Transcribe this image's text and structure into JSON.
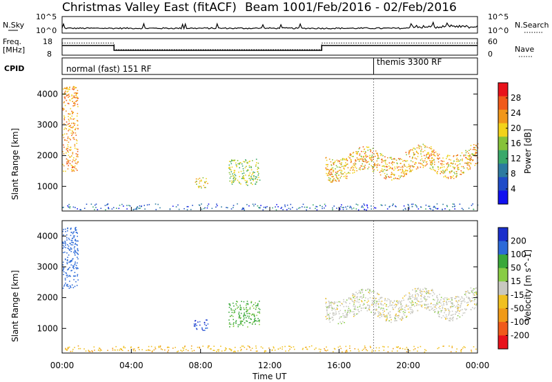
{
  "header": {
    "title": "Christmas Valley East (fitACF)",
    "beam": "Beam 10",
    "date_range": "01/Feb/2016 - 02/Feb/2016"
  },
  "noise_panel": {
    "left_label": "N.Sky",
    "right_label": "N.Search",
    "left_ticks": [
      "10^5",
      "10^0"
    ],
    "right_ticks": [
      "10^5",
      "10^0"
    ]
  },
  "freq_panel": {
    "left_label_1": "Freq.",
    "left_label_2": "[MHz]",
    "right_label": "Nave",
    "left_ticks": [
      "18",
      "8"
    ],
    "right_ticks": [
      "60",
      "0"
    ]
  },
  "cpid_panel": {
    "label": "CPID",
    "mode_1": "normal (fast) 151 RF",
    "mode_2": "themis 3300 RF"
  },
  "power_panel": {
    "ylabel": "Slant Range [km]",
    "yticks": [
      "4000",
      "3000",
      "2000",
      "1000"
    ],
    "colorbar_label": "Power [dB]",
    "colorbar_ticks": [
      "28",
      "24",
      "20",
      "16",
      "12",
      "8",
      "4"
    ],
    "colorbar_colors": [
      "#e8121b",
      "#f05a1a",
      "#f0961a",
      "#f2d21a",
      "#86c23a",
      "#3aa86a",
      "#2c7aa0",
      "#1f4cc8",
      "#1010f0"
    ]
  },
  "velocity_panel": {
    "ylabel": "Slant Range [km]",
    "yticks": [
      "4000",
      "3000",
      "2000",
      "1000"
    ],
    "colorbar_label": "Velocity [m s^-1]",
    "colorbar_ticks": [
      "200",
      "100",
      "50",
      "15",
      "-15",
      "-50",
      "-100",
      "-200"
    ],
    "colorbar_colors": [
      "#1a2fcc",
      "#2c6ad8",
      "#3aa83a",
      "#88cc44",
      "#c8c8c0",
      "#f0c020",
      "#f09a18",
      "#f05a1a",
      "#e8121b"
    ]
  },
  "xaxis": {
    "label": "Time UT",
    "ticks": [
      "00:00",
      "04:00",
      "08:00",
      "12:00",
      "16:00",
      "20:00",
      "00:00"
    ]
  },
  "chart_data": {
    "type": "heatmap",
    "title": "Christmas Valley East (fitACF) Beam 10 01/Feb/2016 - 02/Feb/2016",
    "xlabel": "Time UT",
    "ylabel": "Slant Range [km]",
    "x_range_hours": [
      0,
      24
    ],
    "y_range_km": [
      200,
      4500
    ],
    "frequency_steps": [
      {
        "start_hour": 0,
        "end_hour": 3.0,
        "freq_mhz": 14
      },
      {
        "start_hour": 3.0,
        "end_hour": 15.0,
        "freq_mhz": 10.5
      },
      {
        "start_hour": 15.0,
        "end_hour": 24,
        "freq_mhz": 14
      }
    ],
    "cpid_change_hour": 18.0,
    "power_features": [
      {
        "name": "near-range band",
        "t0": 0.0,
        "t1": 24.0,
        "r0": 250,
        "r1": 450,
        "level_db": 6
      },
      {
        "name": "early burst",
        "t0": 0.0,
        "t1": 0.9,
        "r0": 1500,
        "r1": 4300,
        "level_db": 24
      },
      {
        "name": "patch 08h",
        "t0": 7.6,
        "t1": 8.4,
        "r0": 950,
        "r1": 1300,
        "level_db": 20
      },
      {
        "name": "patch 10-11h",
        "t0": 9.6,
        "t1": 11.4,
        "r0": 1050,
        "r1": 1900,
        "level_db": 16
      },
      {
        "name": "evening band",
        "t0": 15.2,
        "t1": 24.0,
        "r0": 1300,
        "r1": 2200,
        "level_db": 22
      }
    ],
    "velocity_features": [
      {
        "name": "near-range band",
        "t0": 0.0,
        "t1": 24.0,
        "r0": 250,
        "r1": 450,
        "velocity_ms": -40
      },
      {
        "name": "early burst",
        "t0": 0.0,
        "t1": 0.9,
        "r0": 2300,
        "r1": 4300,
        "velocity_ms": 150
      },
      {
        "name": "patch 08h",
        "t0": 7.6,
        "t1": 8.4,
        "r0": 950,
        "r1": 1300,
        "velocity_ms": 200
      },
      {
        "name": "patch 10-11h",
        "t0": 9.6,
        "t1": 11.4,
        "r0": 1050,
        "r1": 1900,
        "velocity_ms": 60
      },
      {
        "name": "evening band",
        "t0": 15.2,
        "t1": 24.0,
        "r0": 1300,
        "r1": 2200,
        "velocity_ms": 0
      }
    ]
  }
}
